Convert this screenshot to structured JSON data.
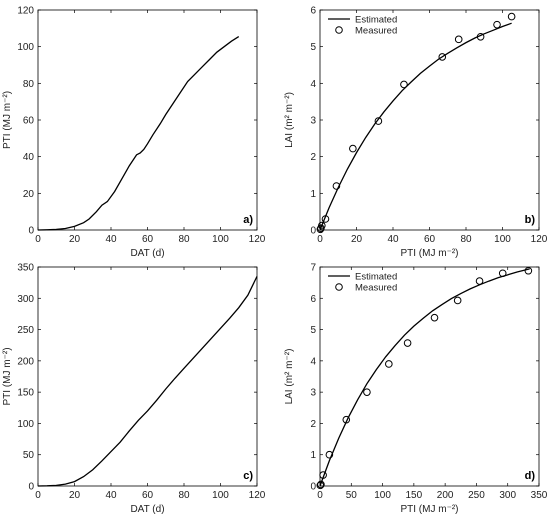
{
  "chart_data": [
    {
      "id": "a",
      "type": "line",
      "panel_label": "a)",
      "xlabel": "DAT (d)",
      "ylabel": "PTI (MJ m⁻²)",
      "xlim": [
        0,
        120
      ],
      "ylim": [
        0,
        120
      ],
      "xticks": [
        0,
        20,
        40,
        60,
        80,
        100,
        120
      ],
      "yticks": [
        0,
        20,
        40,
        60,
        80,
        100,
        120
      ],
      "grid": false,
      "series": [
        {
          "x": [
            0,
            5,
            10,
            15,
            20,
            25,
            28,
            32,
            35,
            38,
            42,
            46,
            50,
            54,
            56,
            58,
            60,
            63,
            67,
            70,
            74,
            78,
            82,
            86,
            90,
            94,
            98,
            102,
            106,
            110
          ],
          "y": [
            0,
            0.1,
            0.3,
            0.8,
            2,
            4,
            6,
            10,
            13.5,
            15.5,
            21,
            28,
            35,
            41,
            42,
            44,
            47,
            52,
            58,
            63,
            69,
            75,
            81,
            85,
            89,
            93,
            97,
            100,
            103,
            105.5
          ]
        }
      ]
    },
    {
      "id": "b",
      "type": "scatter",
      "panel_label": "b)",
      "xlabel": "PTI (MJ m⁻²)",
      "ylabel": "LAI (m² m⁻²)",
      "xlim": [
        0,
        120
      ],
      "ylim": [
        0,
        6
      ],
      "xticks": [
        0,
        20,
        40,
        60,
        80,
        100,
        120
      ],
      "yticks": [
        0,
        1,
        2,
        3,
        4,
        5,
        6
      ],
      "grid": false,
      "legend": {
        "placement": "top-left",
        "entries": [
          "Estimated",
          "Measured"
        ]
      },
      "series": [
        {
          "name": "Estimated",
          "kind": "line",
          "x": [
            0,
            5,
            10,
            15,
            20,
            25,
            30,
            35,
            40,
            45,
            50,
            55,
            60,
            65,
            70,
            75,
            80,
            85,
            90,
            95,
            100,
            105
          ],
          "y": [
            0,
            0.61,
            1.16,
            1.66,
            2.11,
            2.52,
            2.89,
            3.22,
            3.52,
            3.8,
            4.04,
            4.27,
            4.47,
            4.66,
            4.82,
            4.97,
            5.11,
            5.24,
            5.35,
            5.45,
            5.55,
            5.64
          ]
        },
        {
          "name": "Measured",
          "kind": "markers",
          "x": [
            0.2,
            0.5,
            1,
            3,
            9,
            18,
            32,
            46,
            67,
            76,
            88,
            97,
            105
          ],
          "y": [
            0.02,
            0.05,
            0.12,
            0.3,
            1.2,
            2.22,
            2.97,
            3.97,
            4.72,
            5.2,
            5.27,
            5.6,
            5.82
          ]
        }
      ]
    },
    {
      "id": "c",
      "type": "line",
      "panel_label": "c)",
      "xlabel": "DAT (d)",
      "ylabel": "PTI (MJ m⁻²)",
      "xlim": [
        0,
        120
      ],
      "ylim": [
        0,
        350
      ],
      "xticks": [
        0,
        20,
        40,
        60,
        80,
        100,
        120
      ],
      "yticks": [
        0,
        50,
        100,
        150,
        200,
        250,
        300,
        350
      ],
      "grid": false,
      "series": [
        {
          "x": [
            0,
            5,
            10,
            15,
            20,
            25,
            30,
            35,
            40,
            45,
            50,
            55,
            60,
            65,
            70,
            75,
            80,
            85,
            90,
            95,
            100,
            105,
            110,
            115,
            120
          ],
          "y": [
            0,
            0.3,
            1,
            3,
            7,
            15,
            26,
            40,
            55,
            70,
            88,
            105,
            120,
            137,
            155,
            172,
            188,
            204,
            220,
            236,
            252,
            268,
            285,
            305,
            335
          ]
        }
      ]
    },
    {
      "id": "d",
      "type": "scatter",
      "panel_label": "d)",
      "xlabel": "PTI (MJ m⁻²)",
      "ylabel": "LAI (m² m⁻²)",
      "xlim": [
        0,
        350
      ],
      "ylim": [
        0,
        7
      ],
      "xticks": [
        0,
        50,
        100,
        150,
        200,
        250,
        300,
        350
      ],
      "yticks": [
        0,
        1,
        2,
        3,
        4,
        5,
        6,
        7
      ],
      "grid": false,
      "legend": {
        "placement": "top-left",
        "entries": [
          "Estimated",
          "Measured"
        ]
      },
      "series": [
        {
          "name": "Estimated",
          "kind": "line",
          "x": [
            0,
            15,
            30,
            45,
            60,
            75,
            90,
            105,
            120,
            135,
            150,
            165,
            180,
            195,
            210,
            225,
            240,
            255,
            270,
            285,
            300,
            315,
            335
          ],
          "y": [
            0,
            0.81,
            1.53,
            2.18,
            2.75,
            3.27,
            3.72,
            4.13,
            4.49,
            4.82,
            5.11,
            5.36,
            5.6,
            5.8,
            5.99,
            6.15,
            6.3,
            6.43,
            6.55,
            6.66,
            6.75,
            6.84,
            6.94
          ]
        },
        {
          "name": "Measured",
          "kind": "markers",
          "x": [
            0.5,
            1.5,
            5,
            15,
            42,
            75,
            110,
            140,
            183,
            220,
            255,
            292,
            333
          ],
          "y": [
            0.02,
            0.05,
            0.35,
            1.0,
            2.12,
            3.0,
            3.9,
            4.57,
            5.38,
            5.93,
            6.55,
            6.8,
            6.88
          ]
        }
      ]
    }
  ]
}
